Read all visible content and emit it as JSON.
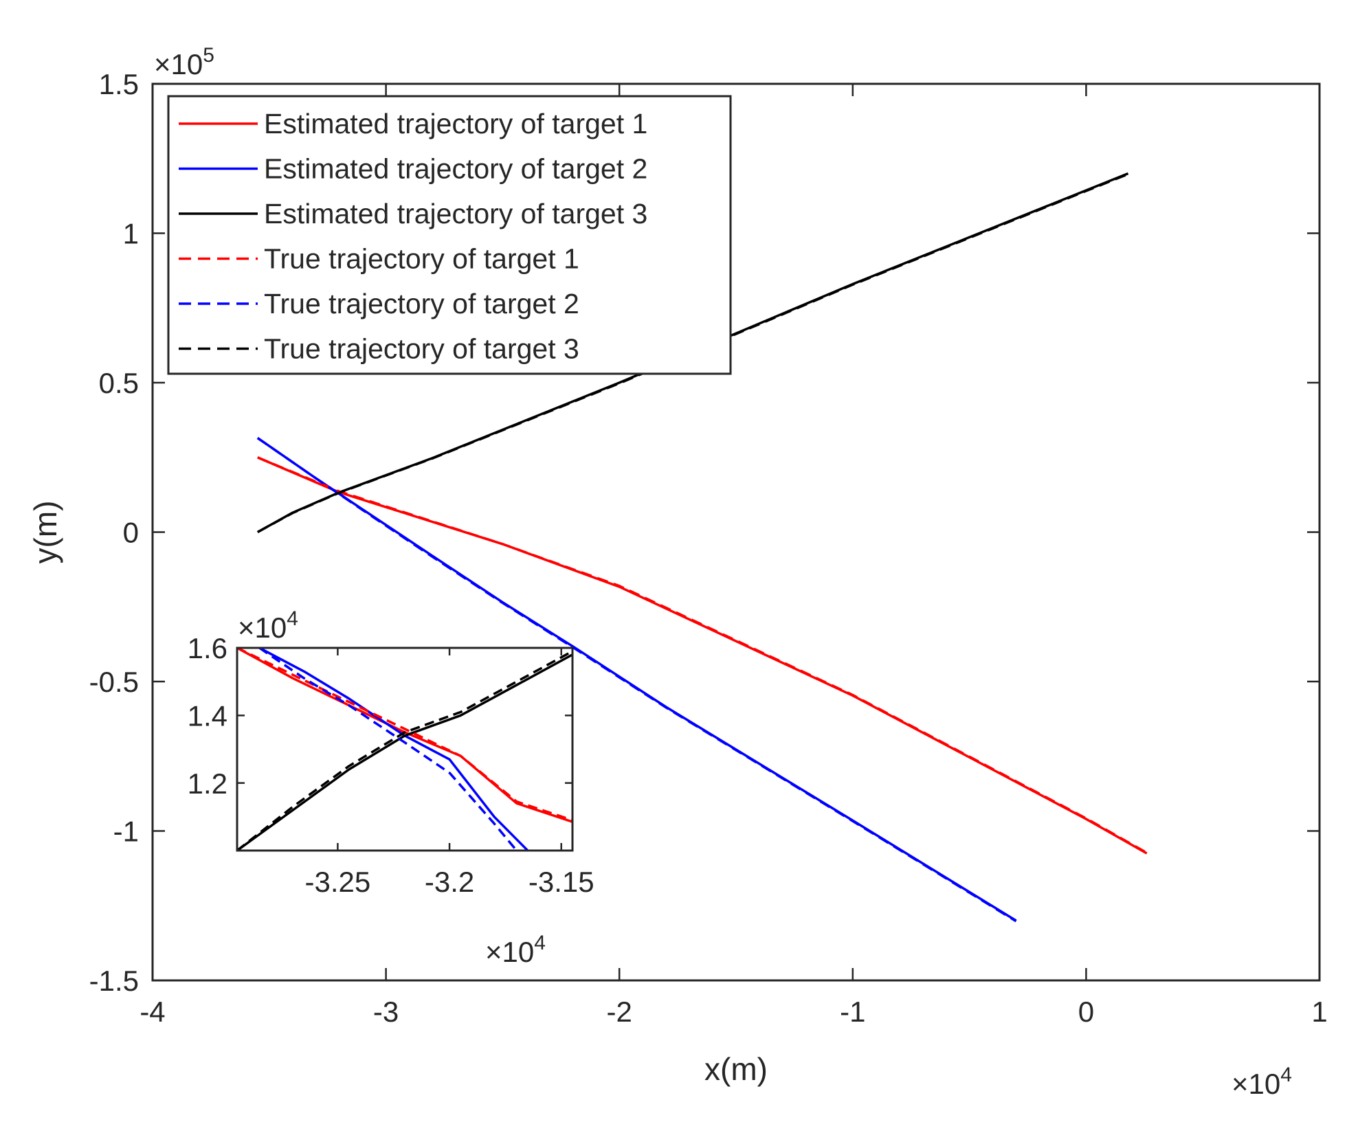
{
  "chart_data": [
    {
      "type": "line",
      "title": "",
      "xlabel": "x(m)",
      "ylabel": "y(m)",
      "x_exponent_label": "×10",
      "x_exponent": "4",
      "y_exponent_label": "×10",
      "y_exponent": "5",
      "xlim": [
        -40000,
        10000
      ],
      "ylim": [
        -150000,
        150000
      ],
      "x_ticks": [
        -40000,
        -30000,
        -20000,
        -10000,
        0,
        10000
      ],
      "x_tick_labels": [
        "-4",
        "-3",
        "-2",
        "-1",
        "0",
        "1"
      ],
      "y_ticks": [
        -150000,
        -100000,
        -50000,
        0,
        50000,
        100000,
        150000
      ],
      "y_tick_labels": [
        "-1.5",
        "-1",
        "-0.5",
        "0",
        "0.5",
        "1",
        "1.5"
      ],
      "grid": false,
      "legend_position": "top-left",
      "series": [
        {
          "name": "Estimated trajectory of target 1",
          "color": "#ff0000",
          "style": "solid",
          "x": [
            -35500,
            -32000,
            -25000,
            -20000,
            -10000,
            0,
            2600
          ],
          "y": [
            25000,
            13300,
            -4000,
            -18300,
            -54700,
            -96000,
            -107500
          ]
        },
        {
          "name": "Estimated trajectory of target 2",
          "color": "#0000ff",
          "style": "solid",
          "x": [
            -35500,
            -33000,
            -31000,
            -28000,
            -25000,
            -22000,
            -18000,
            -10000,
            -3000
          ],
          "y": [
            31500,
            18000,
            7600,
            -8000,
            -23500,
            -38200,
            -58500,
            -96500,
            -130000
          ]
        },
        {
          "name": "Estimated trajectory of target 3",
          "color": "#000000",
          "style": "solid",
          "x": [
            -35500,
            -34000,
            -32000,
            -28000,
            -20000,
            -10000,
            1800
          ],
          "y": [
            0,
            6500,
            13300,
            24800,
            50000,
            83000,
            120000
          ]
        },
        {
          "name": "True trajectory of target 1",
          "color": "#ff0000",
          "style": "dashed",
          "x": [
            -35500,
            -32000,
            -25000,
            -20000,
            -10000,
            0,
            2600
          ],
          "y": [
            25000,
            13600,
            -4000,
            -18000,
            -54500,
            -95800,
            -107300
          ]
        },
        {
          "name": "True trajectory of target 2",
          "color": "#0000ff",
          "style": "dashed",
          "x": [
            -35500,
            -33000,
            -31000,
            -28000,
            -25000,
            -22000,
            -18000,
            -10000,
            -3000
          ],
          "y": [
            31500,
            18000,
            7400,
            -8300,
            -23700,
            -38500,
            -58700,
            -96700,
            -130200
          ]
        },
        {
          "name": "True trajectory of target 3",
          "color": "#000000",
          "style": "dashed",
          "x": [
            -35500,
            -34000,
            -32000,
            -28000,
            -20000,
            -10000,
            1800
          ],
          "y": [
            0,
            6400,
            13200,
            24700,
            49800,
            82800,
            119800
          ]
        }
      ]
    },
    {
      "type": "line",
      "title": "",
      "xlabel": "",
      "ylabel": "",
      "x_exponent_label": "×10",
      "x_exponent": "4",
      "y_exponent_label": "×10",
      "y_exponent": "4",
      "xlim": [
        -32950,
        -31450
      ],
      "ylim": [
        10000,
        16000
      ],
      "x_ticks": [
        -32500,
        -32000,
        -31500
      ],
      "x_tick_labels": [
        "-3.25",
        "-3.2",
        "-3.15"
      ],
      "y_ticks": [
        12000,
        14000,
        16000
      ],
      "y_tick_labels": [
        "1.2",
        "1.4",
        "1.6"
      ],
      "grid": false,
      "series": [
        {
          "name": "Estimated trajectory of target 1",
          "color": "#ff0000",
          "style": "solid",
          "x": [
            -32950,
            -32700,
            -32450,
            -32200,
            -31950,
            -31700,
            -31450
          ],
          "y": [
            16000,
            15100,
            14300,
            13500,
            12800,
            11400,
            10850
          ]
        },
        {
          "name": "Estimated trajectory of target 2",
          "color": "#0000ff",
          "style": "solid",
          "x": [
            -32850,
            -32650,
            -32450,
            -32200,
            -32000,
            -31800,
            -31650
          ],
          "y": [
            16000,
            15300,
            14500,
            13400,
            12700,
            11000,
            10000
          ]
        },
        {
          "name": "Estimated trajectory of target 3",
          "color": "#000000",
          "style": "solid",
          "x": [
            -32950,
            -32700,
            -32450,
            -32200,
            -31950,
            -31700,
            -31450
          ],
          "y": [
            10000,
            11200,
            12400,
            13400,
            14000,
            14900,
            15800
          ]
        },
        {
          "name": "True trajectory of target 1",
          "color": "#ff0000",
          "style": "dashed",
          "x": [
            -32950,
            -32700,
            -32450,
            -32200,
            -31950,
            -31700,
            -31450
          ],
          "y": [
            16000,
            15200,
            14400,
            13600,
            12800,
            11450,
            10900
          ]
        },
        {
          "name": "True trajectory of target 2",
          "color": "#0000ff",
          "style": "dashed",
          "x": [
            -32850,
            -32650,
            -32450,
            -32200,
            -32000,
            -31800,
            -31700
          ],
          "y": [
            16000,
            15100,
            14300,
            13200,
            12300,
            10800,
            10000
          ]
        },
        {
          "name": "True trajectory of target 3",
          "color": "#000000",
          "style": "dashed",
          "x": [
            -32950,
            -32700,
            -32450,
            -32200,
            -31950,
            -31700,
            -31450
          ],
          "y": [
            10000,
            11300,
            12500,
            13500,
            14100,
            15000,
            15900
          ]
        }
      ]
    }
  ]
}
